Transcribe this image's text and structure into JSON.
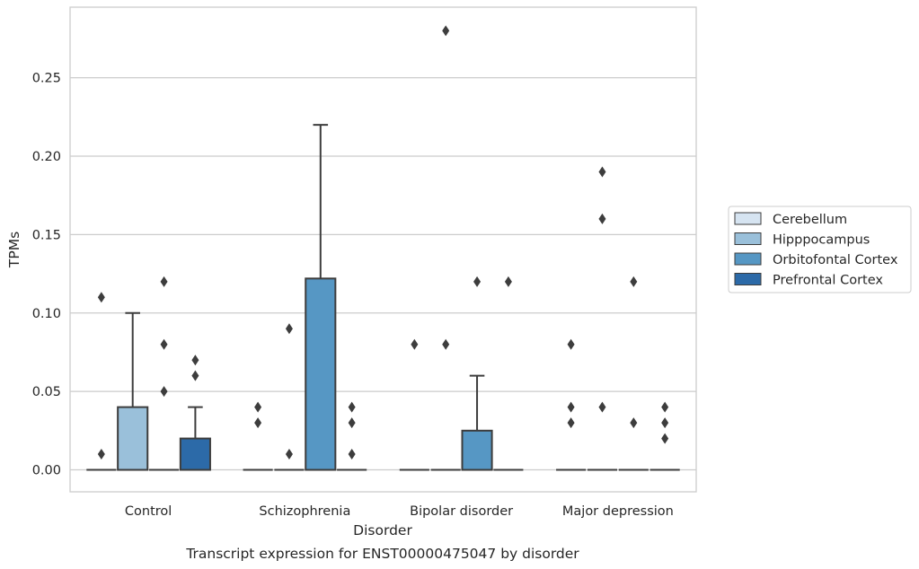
{
  "chart_data": {
    "type": "box",
    "title": "",
    "caption": "Transcript expression for ENST00000475047 by disorder",
    "xlabel": "Disorder",
    "ylabel": "TPMs",
    "ylim": [
      -0.014,
      0.295
    ],
    "yticks": [
      "0.00",
      "0.05",
      "0.10",
      "0.15",
      "0.20",
      "0.25"
    ],
    "grid": true,
    "legend_position": "right",
    "categories": [
      "Control",
      "Schizophrenia",
      "Bipolar disorder",
      "Major depression"
    ],
    "series": [
      {
        "name": "Cerebellum",
        "color": "#d6e4f1",
        "boxes": [
          {
            "q1": 0,
            "median": 0,
            "q3": 0,
            "whisker_low": 0,
            "whisker_high": 0,
            "outliers": [
              0.01,
              0.11
            ]
          },
          {
            "q1": 0,
            "median": 0,
            "q3": 0,
            "whisker_low": 0,
            "whisker_high": 0,
            "outliers": [
              0.03,
              0.04
            ]
          },
          {
            "q1": 0,
            "median": 0,
            "q3": 0,
            "whisker_low": 0,
            "whisker_high": 0,
            "outliers": [
              0.08
            ]
          },
          {
            "q1": 0,
            "median": 0,
            "q3": 0,
            "whisker_low": 0,
            "whisker_high": 0,
            "outliers": [
              0.03,
              0.04,
              0.08
            ]
          }
        ]
      },
      {
        "name": "Hipppocampus",
        "color": "#9ac0da",
        "boxes": [
          {
            "q1": 0,
            "median": 0,
            "q3": 0.04,
            "whisker_low": 0,
            "whisker_high": 0.1,
            "outliers": []
          },
          {
            "q1": 0,
            "median": 0,
            "q3": 0,
            "whisker_low": 0,
            "whisker_high": 0,
            "outliers": [
              0.01,
              0.09
            ]
          },
          {
            "q1": 0,
            "median": 0,
            "q3": 0,
            "whisker_low": 0,
            "whisker_high": 0,
            "outliers": [
              0.08,
              0.28
            ]
          },
          {
            "q1": 0,
            "median": 0,
            "q3": 0,
            "whisker_low": 0,
            "whisker_high": 0,
            "outliers": [
              0.04,
              0.16,
              0.19
            ]
          }
        ]
      },
      {
        "name": "Orbitofontal Cortex",
        "color": "#5697c4",
        "boxes": [
          {
            "q1": 0,
            "median": 0,
            "q3": 0,
            "whisker_low": 0,
            "whisker_high": 0,
            "outliers": [
              0.05,
              0.08,
              0.12
            ]
          },
          {
            "q1": 0,
            "median": 0,
            "q3": 0.122,
            "whisker_low": 0,
            "whisker_high": 0.22,
            "outliers": []
          },
          {
            "q1": 0,
            "median": 0,
            "q3": 0.025,
            "whisker_low": 0,
            "whisker_high": 0.06,
            "outliers": [
              0.12
            ]
          },
          {
            "q1": 0,
            "median": 0,
            "q3": 0,
            "whisker_low": 0,
            "whisker_high": 0,
            "outliers": [
              0.03,
              0.12
            ]
          }
        ]
      },
      {
        "name": "Prefrontal Cortex",
        "color": "#2c6aa8",
        "boxes": [
          {
            "q1": 0,
            "median": 0,
            "q3": 0.02,
            "whisker_low": 0,
            "whisker_high": 0.04,
            "outliers": [
              0.06,
              0.07
            ]
          },
          {
            "q1": 0,
            "median": 0,
            "q3": 0,
            "whisker_low": 0,
            "whisker_high": 0,
            "outliers": [
              0.01,
              0.03,
              0.04
            ]
          },
          {
            "q1": 0,
            "median": 0,
            "q3": 0,
            "whisker_low": 0,
            "whisker_high": 0,
            "outliers": [
              0.12
            ]
          },
          {
            "q1": 0,
            "median": 0,
            "q3": 0,
            "whisker_low": 0,
            "whisker_high": 0,
            "outliers": [
              0.02,
              0.03,
              0.04
            ]
          }
        ]
      }
    ]
  }
}
